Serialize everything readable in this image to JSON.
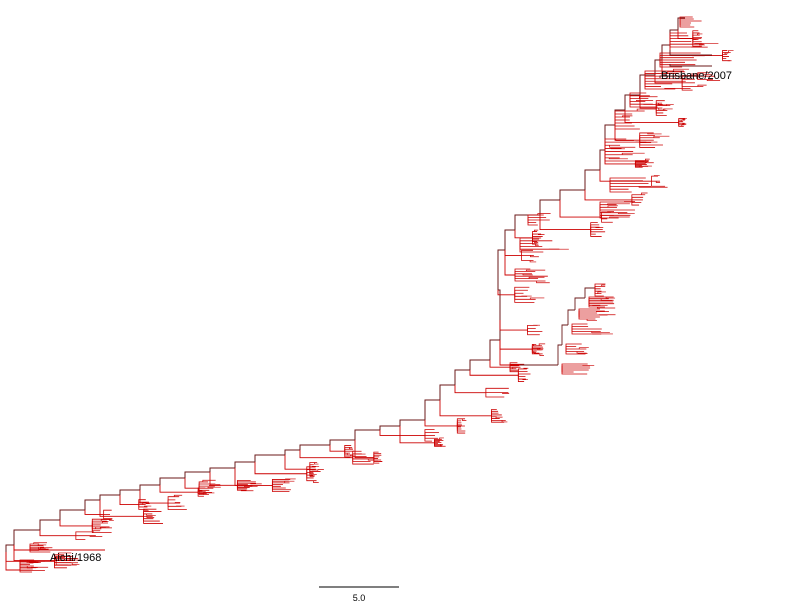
{
  "tree": {
    "branch_color": "#cc0000",
    "trunk_color": "#6b1a1a",
    "labels": {
      "root_strain": "Aichi/1968",
      "tip_strain": "Brisbane/2007"
    }
  },
  "scale_bar": {
    "value": 5.0,
    "label": "5.0",
    "color": "#333333"
  }
}
